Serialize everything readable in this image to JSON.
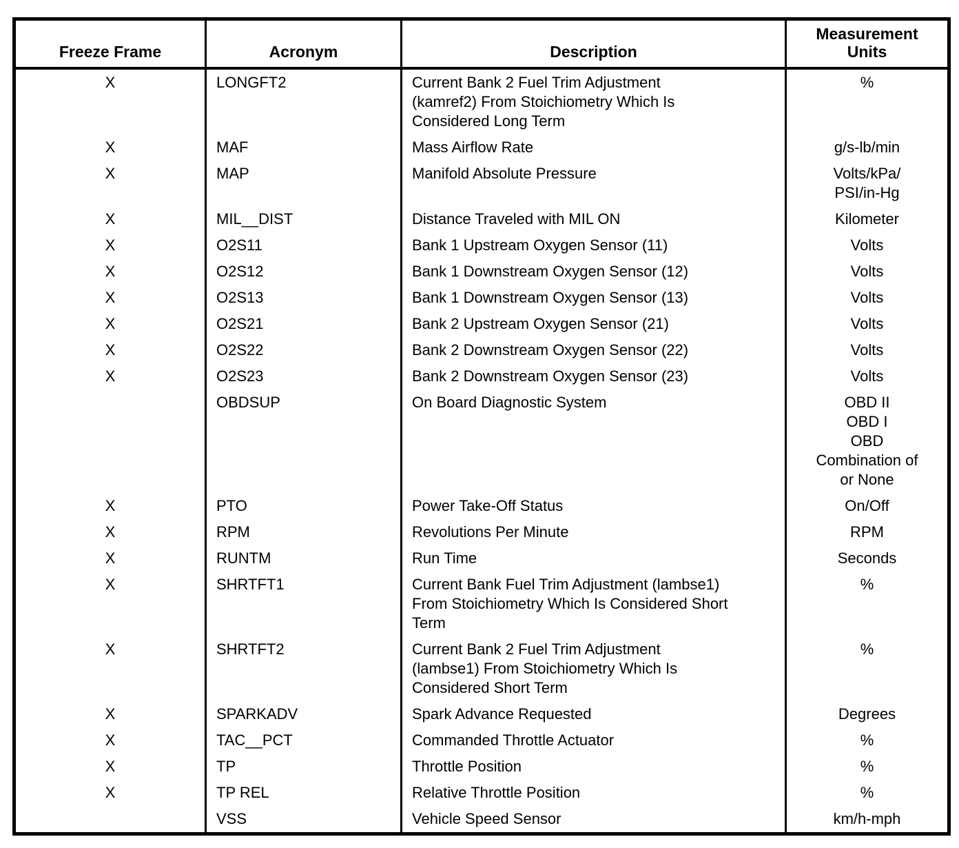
{
  "page": {
    "background_color": "#ffffff",
    "text_color": "#000000",
    "border_color": "#000000"
  },
  "table": {
    "headers": {
      "freeze_frame": "Freeze Frame",
      "acronym": "Acronym",
      "description": "Description",
      "units": "Measurement\nUnits"
    },
    "rows": [
      {
        "freeze_frame": "X",
        "acronym": "LONGFT2",
        "description": "Current Bank 2 Fuel Trim Adjustment\n(kamref2) From Stoichiometry Which Is\nConsidered Long Term",
        "units": "%"
      },
      {
        "freeze_frame": "X",
        "acronym": "MAF",
        "description": "Mass Airflow Rate",
        "units": "g/s-lb/min"
      },
      {
        "freeze_frame": "X",
        "acronym": "MAP",
        "description": "Manifold Absolute Pressure",
        "units": "Volts/kPa/\nPSI/in-Hg"
      },
      {
        "freeze_frame": "X",
        "acronym": "MIL__DIST",
        "description": "Distance Traveled with MIL ON",
        "units": "Kilometer"
      },
      {
        "freeze_frame": "X",
        "acronym": "O2S11",
        "description": "Bank 1 Upstream Oxygen Sensor (11)",
        "units": "Volts"
      },
      {
        "freeze_frame": "X",
        "acronym": "O2S12",
        "description": "Bank 1 Downstream Oxygen Sensor (12)",
        "units": "Volts"
      },
      {
        "freeze_frame": "X",
        "acronym": "O2S13",
        "description": "Bank 1 Downstream Oxygen Sensor (13)",
        "units": "Volts"
      },
      {
        "freeze_frame": "X",
        "acronym": "O2S21",
        "description": "Bank 2 Upstream Oxygen Sensor (21)",
        "units": "Volts"
      },
      {
        "freeze_frame": "X",
        "acronym": "O2S22",
        "description": "Bank 2 Downstream Oxygen Sensor (22)",
        "units": "Volts"
      },
      {
        "freeze_frame": "X",
        "acronym": "O2S23",
        "description": "Bank 2 Downstream Oxygen Sensor (23)",
        "units": "Volts"
      },
      {
        "freeze_frame": "",
        "acronym": "OBDSUP",
        "description": "On Board Diagnostic System",
        "units": "OBD II\nOBD I\nOBD\nCombination of\nor None"
      },
      {
        "freeze_frame": "X",
        "acronym": "PTO",
        "description": "Power Take-Off Status",
        "units": "On/Off"
      },
      {
        "freeze_frame": "X",
        "acronym": "RPM",
        "description": "Revolutions Per Minute",
        "units": "RPM"
      },
      {
        "freeze_frame": "X",
        "acronym": "RUNTM",
        "description": "Run Time",
        "units": "Seconds"
      },
      {
        "freeze_frame": "X",
        "acronym": "SHRTFT1",
        "description": "Current Bank Fuel Trim Adjustment (lambse1)\nFrom Stoichiometry Which Is Considered Short\nTerm",
        "units": "%"
      },
      {
        "freeze_frame": "X",
        "acronym": "SHRTFT2",
        "description": "Current Bank 2 Fuel Trim Adjustment\n(lambse1) From Stoichiometry Which Is\nConsidered Short Term",
        "units": "%"
      },
      {
        "freeze_frame": "X",
        "acronym": "SPARKADV",
        "description": "Spark Advance Requested",
        "units": "Degrees"
      },
      {
        "freeze_frame": "X",
        "acronym": "TAC__PCT",
        "description": "Commanded Throttle Actuator",
        "units": "%"
      },
      {
        "freeze_frame": "X",
        "acronym": "TP",
        "description": "Throttle Position",
        "units": "%"
      },
      {
        "freeze_frame": "X",
        "acronym": "TP REL",
        "description": "Relative Throttle Position",
        "units": "%"
      },
      {
        "freeze_frame": "",
        "acronym": "VSS",
        "description": "Vehicle Speed Sensor",
        "units": "km/h-mph"
      }
    ]
  }
}
